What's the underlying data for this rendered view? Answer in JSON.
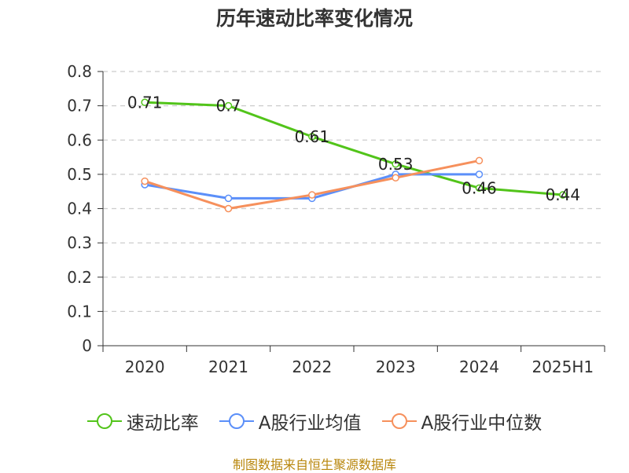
{
  "chart_data": {
    "type": "line",
    "title": "历年速动比率变化情况",
    "categories": [
      "2020",
      "2021",
      "2022",
      "2023",
      "2024",
      "2025H1"
    ],
    "ylim": [
      0,
      0.8
    ],
    "yticks": [
      "0",
      "0.1",
      "0.2",
      "0.3",
      "0.4",
      "0.5",
      "0.6",
      "0.7",
      "0.8"
    ],
    "grid": true,
    "legend_position": "bottom",
    "series": [
      {
        "name": "速动比率",
        "color": "#52c41a",
        "values": [
          0.71,
          0.7,
          0.61,
          0.53,
          0.46,
          0.44
        ],
        "labels": [
          "0.71",
          "0.7",
          "0.61",
          "0.53",
          "0.46",
          "0.44"
        ],
        "show_labels": true
      },
      {
        "name": "A股行业均值",
        "color": "#5b8ff9",
        "values": [
          0.47,
          0.43,
          0.43,
          0.5,
          0.5,
          null
        ],
        "show_labels": false
      },
      {
        "name": "A股行业中位数",
        "color": "#f6905c",
        "values": [
          0.48,
          0.4,
          0.44,
          0.49,
          0.54,
          null
        ],
        "show_labels": false
      }
    ]
  },
  "source": "制图数据来自恒生聚源数据库"
}
